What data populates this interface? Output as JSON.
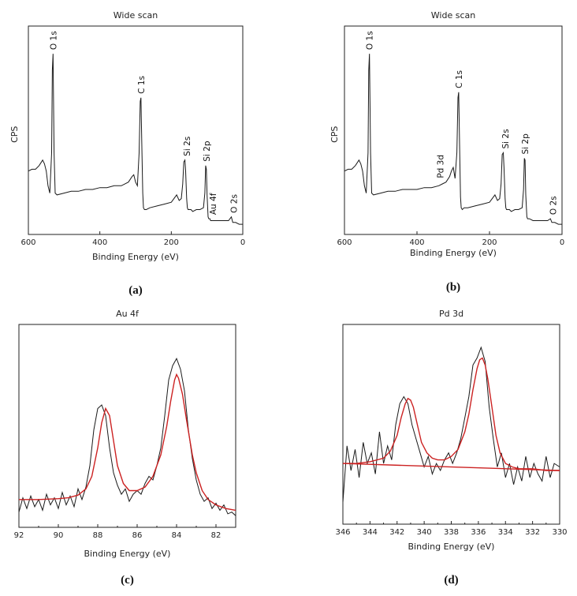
{
  "chart_data": [
    {
      "id": "a",
      "type": "line",
      "title": "Wide scan",
      "xlabel": "Binding Energy (eV)",
      "ylabel": "CPS",
      "xlim": [
        600,
        0
      ],
      "ylim": [
        0,
        100
      ],
      "xticks": [
        600,
        400,
        200,
        0
      ],
      "xtick_labels": [
        "600",
        "400",
        "200",
        "0"
      ],
      "panel_label": "(a)",
      "series": [
        {
          "name": "spectrum",
          "color": "#1a1a1a",
          "x": [
            600,
            590,
            580,
            570,
            560,
            555,
            550,
            545,
            540,
            535,
            533,
            531,
            528,
            525,
            520,
            500,
            480,
            460,
            440,
            420,
            400,
            380,
            360,
            340,
            320,
            310,
            305,
            300,
            295,
            290,
            287,
            285,
            282,
            280,
            278,
            275,
            270,
            260,
            240,
            220,
            200,
            185,
            178,
            172,
            168,
            165,
            162,
            160,
            157,
            155,
            153,
            150,
            145,
            140,
            130,
            120,
            110,
            106,
            104,
            102,
            100,
            97,
            95,
            92,
            90,
            85,
            80,
            70,
            60,
            50,
            40,
            32,
            28,
            25,
            20,
            10,
            5,
            0
          ],
          "y": [
            30,
            31,
            31,
            33,
            36,
            34,
            30,
            22,
            18,
            40,
            85,
            94,
            40,
            18,
            17,
            18,
            19,
            19,
            20,
            20,
            21,
            21,
            22,
            22,
            24,
            27,
            28,
            24,
            22,
            40,
            68,
            70,
            38,
            18,
            10,
            9,
            9,
            10,
            11,
            12,
            13,
            17,
            14,
            15,
            23,
            35,
            36,
            30,
            15,
            10,
            9,
            9,
            9,
            8,
            9,
            9,
            10,
            18,
            33,
            31,
            17,
            5,
            4,
            4,
            3,
            3,
            3,
            3,
            3,
            3,
            3,
            5,
            2,
            2,
            2,
            1,
            1,
            1
          ]
        }
      ],
      "annotations": [
        {
          "text": "O 1s",
          "x": 531
        },
        {
          "text": "C 1s",
          "x": 285
        },
        {
          "text": "Si 2s",
          "x": 157
        },
        {
          "text": "Si 2p",
          "x": 102
        },
        {
          "text": "Au 4f",
          "x": 84
        },
        {
          "text": "O 2s",
          "x": 25
        }
      ]
    },
    {
      "id": "b",
      "type": "line",
      "title": "Wide scan",
      "xlabel": "Binding Energy (eV)",
      "ylabel": "CPS",
      "xlim": [
        600,
        0
      ],
      "ylim": [
        0,
        100
      ],
      "xticks": [
        600,
        400,
        200,
        0
      ],
      "xtick_labels": [
        "600",
        "400",
        "200",
        "0"
      ],
      "panel_label": "(b)",
      "series": [
        {
          "name": "spectrum",
          "color": "#1a1a1a",
          "x": [
            600,
            590,
            580,
            570,
            560,
            555,
            550,
            545,
            540,
            535,
            533,
            531,
            528,
            525,
            520,
            500,
            480,
            460,
            440,
            420,
            400,
            380,
            360,
            340,
            330,
            320,
            310,
            305,
            300,
            295,
            290,
            287,
            285,
            282,
            280,
            278,
            275,
            270,
            260,
            240,
            220,
            200,
            185,
            178,
            172,
            168,
            165,
            162,
            160,
            157,
            155,
            153,
            150,
            145,
            140,
            130,
            120,
            110,
            106,
            104,
            102,
            100,
            97,
            95,
            90,
            80,
            60,
            40,
            32,
            28,
            25,
            20,
            10,
            5,
            0
          ],
          "y": [
            30,
            31,
            31,
            33,
            36,
            34,
            30,
            22,
            18,
            40,
            85,
            94,
            40,
            18,
            17,
            18,
            19,
            19,
            20,
            20,
            20,
            21,
            21,
            22,
            23,
            24,
            27,
            30,
            32,
            26,
            40,
            70,
            73,
            38,
            16,
            10,
            9,
            10,
            10,
            11,
            12,
            13,
            17,
            14,
            15,
            23,
            39,
            40,
            32,
            15,
            10,
            9,
            9,
            9,
            8,
            9,
            9,
            10,
            20,
            37,
            36,
            17,
            5,
            4,
            4,
            3,
            3,
            3,
            4,
            2,
            2,
            2,
            1,
            1,
            1
          ]
        }
      ],
      "annotations": [
        {
          "text": "O 1s",
          "x": 531
        },
        {
          "text": "Pd 3d",
          "x": 336
        },
        {
          "text": "C 1s",
          "x": 285
        },
        {
          "text": "Si 2s",
          "x": 157
        },
        {
          "text": "Si 2p",
          "x": 102
        },
        {
          "text": "O 2s",
          "x": 25
        }
      ]
    },
    {
      "id": "c",
      "type": "line",
      "title": "Au 4f",
      "xlabel": "Binding Energy (eV)",
      "ylabel": "",
      "xlim": [
        92,
        81
      ],
      "ylim": [
        0,
        100
      ],
      "xticks": [
        92,
        90,
        88,
        86,
        84,
        82
      ],
      "xtick_labels": [
        "92",
        "90",
        "88",
        "86",
        "84",
        "82"
      ],
      "panel_label": "(c)",
      "series": [
        {
          "name": "spectrum",
          "color": "#1a1a1a",
          "x": [
            92,
            91.8,
            91.6,
            91.4,
            91.2,
            91,
            90.8,
            90.6,
            90.4,
            90.2,
            90,
            89.8,
            89.6,
            89.4,
            89.2,
            89,
            88.8,
            88.6,
            88.4,
            88.2,
            88,
            87.8,
            87.6,
            87.4,
            87.2,
            87,
            86.8,
            86.6,
            86.4,
            86.2,
            86,
            85.8,
            85.6,
            85.4,
            85.2,
            85,
            84.8,
            84.6,
            84.4,
            84.2,
            84,
            83.8,
            83.6,
            83.4,
            83.2,
            83,
            82.8,
            82.6,
            82.4,
            82.2,
            82,
            81.8,
            81.6,
            81.4,
            81.2,
            81
          ],
          "y": [
            4,
            12,
            6,
            13,
            7,
            11,
            5,
            14,
            8,
            12,
            6,
            15,
            8,
            13,
            7,
            17,
            11,
            18,
            30,
            50,
            62,
            64,
            58,
            40,
            26,
            19,
            14,
            17,
            10,
            14,
            16,
            14,
            20,
            24,
            22,
            30,
            40,
            58,
            78,
            86,
            90,
            84,
            72,
            50,
            34,
            22,
            14,
            10,
            12,
            6,
            9,
            5,
            8,
            3,
            4,
            2
          ]
        },
        {
          "name": "fit",
          "color": "#cc2222",
          "x": [
            92,
            91,
            90,
            89.5,
            89,
            88.6,
            88.3,
            88,
            87.8,
            87.6,
            87.4,
            87.2,
            87,
            86.7,
            86.4,
            86,
            85.6,
            85.2,
            84.8,
            84.5,
            84.3,
            84.1,
            84,
            83.9,
            83.7,
            83.5,
            83.2,
            83,
            82.7,
            82.4,
            82,
            81.5,
            81
          ],
          "y": [
            11,
            11,
            11.5,
            12,
            13.5,
            17,
            24,
            40,
            54,
            62,
            58,
            44,
            30,
            20,
            16,
            16,
            18,
            24,
            36,
            52,
            66,
            78,
            81,
            79,
            70,
            56,
            36,
            26,
            16,
            11,
            8,
            6,
            5
          ]
        }
      ],
      "annotations": []
    },
    {
      "id": "d",
      "type": "line",
      "title": "Pd 3d",
      "xlabel": "Binding Energy (eV)",
      "ylabel": "",
      "xlim": [
        346,
        330
      ],
      "ylim": [
        0,
        100
      ],
      "xticks": [
        346,
        344,
        342,
        340,
        338,
        336,
        334,
        332,
        330
      ],
      "xtick_labels": [
        "346",
        "344",
        "342",
        "340",
        "338",
        "336",
        "334",
        "332",
        "330"
      ],
      "panel_label": "(d)",
      "series": [
        {
          "name": "spectrum",
          "color": "#1a1a1a",
          "x": [
            346,
            345.7,
            345.4,
            345.1,
            344.8,
            344.5,
            344.2,
            343.9,
            343.6,
            343.3,
            343,
            342.7,
            342.4,
            342.1,
            341.8,
            341.5,
            341.2,
            340.9,
            340.6,
            340.3,
            340,
            339.7,
            339.4,
            339.1,
            338.8,
            338.5,
            338.2,
            337.9,
            337.6,
            337.3,
            337,
            336.7,
            336.4,
            336.1,
            335.8,
            335.5,
            335.2,
            334.9,
            334.6,
            334.3,
            334,
            333.7,
            333.4,
            333.1,
            332.8,
            332.5,
            332.2,
            331.9,
            331.6,
            331.3,
            331,
            330.7,
            330.4,
            330
          ],
          "y": [
            8,
            40,
            26,
            38,
            22,
            42,
            30,
            36,
            24,
            48,
            30,
            40,
            32,
            52,
            64,
            68,
            64,
            52,
            44,
            36,
            28,
            34,
            24,
            30,
            26,
            32,
            36,
            30,
            36,
            44,
            56,
            68,
            86,
            90,
            96,
            88,
            62,
            44,
            28,
            36,
            22,
            30,
            18,
            28,
            20,
            34,
            22,
            30,
            24,
            20,
            34,
            22,
            30,
            28
          ]
        },
        {
          "name": "fit",
          "color": "#cc2222",
          "x": [
            346,
            345,
            344,
            343,
            342.5,
            342,
            341.7,
            341.4,
            341.2,
            341,
            340.8,
            340.5,
            340.2,
            339.8,
            339.4,
            339,
            338.5,
            338,
            337.5,
            337,
            336.7,
            336.4,
            336.1,
            335.9,
            335.7,
            335.5,
            335.3,
            335,
            334.7,
            334.4,
            334,
            333.5,
            333,
            332,
            331,
            330
          ],
          "y": [
            30,
            30,
            31,
            33,
            37,
            46,
            56,
            64,
            67,
            66,
            62,
            52,
            42,
            36,
            33,
            32,
            32,
            34,
            38,
            48,
            58,
            72,
            84,
            89,
            90,
            86,
            78,
            62,
            46,
            36,
            30,
            28,
            27,
            27,
            26,
            26
          ]
        },
        {
          "name": "baseline",
          "color": "#cc2222",
          "x": [
            346,
            330
          ],
          "y": [
            30,
            26
          ]
        }
      ],
      "annotations": []
    }
  ]
}
